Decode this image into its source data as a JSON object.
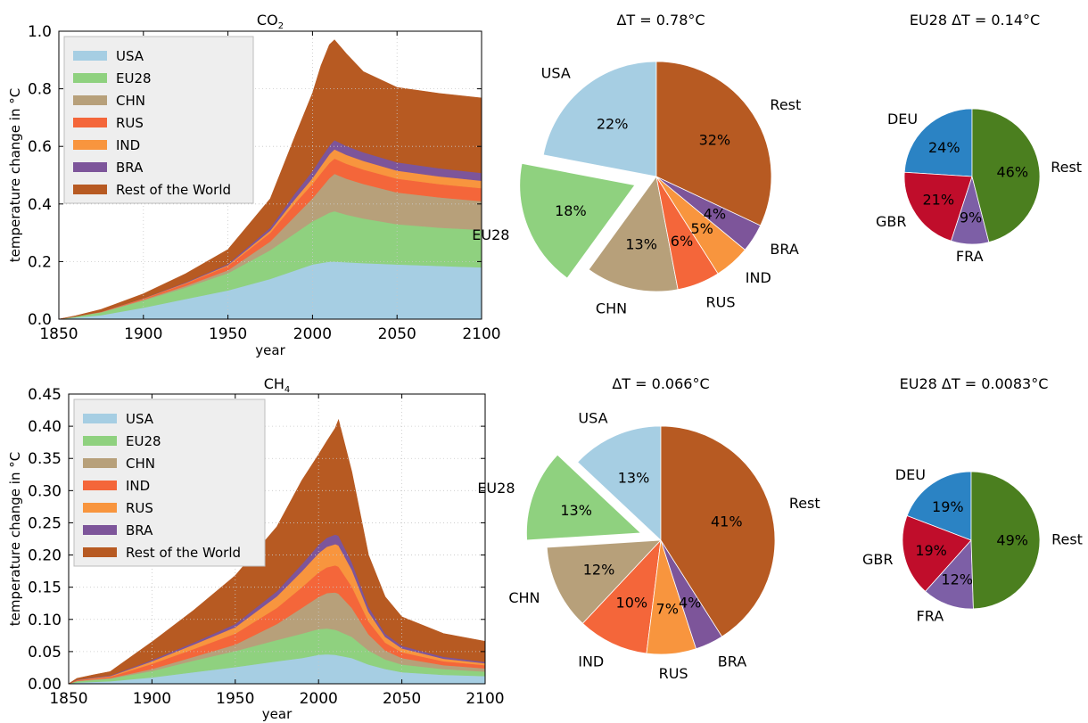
{
  "chart_data": [
    {
      "id": "co2_area",
      "type": "area",
      "title_main": "CO",
      "title_sub": "2",
      "xlabel": "year",
      "ylabel": "temperature change in °C",
      "xlim": [
        1850,
        2100
      ],
      "ylim": [
        0,
        1.0
      ],
      "xticks": [
        "1850",
        "1900",
        "1950",
        "2000",
        "2050",
        "2100"
      ],
      "yticks": [
        "0.0",
        "0.2",
        "0.4",
        "0.6",
        "0.8",
        "1.0"
      ],
      "grid": true,
      "legend_position": "top-left",
      "x": [
        1850,
        1860,
        1875,
        1900,
        1925,
        1950,
        1975,
        1990,
        2000,
        2005,
        2010,
        2013,
        2020,
        2030,
        2050,
        2075,
        2100
      ],
      "series": [
        {
          "name": "USA",
          "color": "#a6cee3",
          "values": [
            0,
            0.006,
            0.014,
            0.04,
            0.07,
            0.1,
            0.14,
            0.17,
            0.19,
            0.195,
            0.2,
            0.2,
            0.198,
            0.195,
            0.19,
            0.185,
            0.18
          ]
        },
        {
          "name": "EU28",
          "color": "#8fd17f",
          "values": [
            0,
            0.004,
            0.01,
            0.025,
            0.04,
            0.06,
            0.1,
            0.13,
            0.15,
            0.16,
            0.17,
            0.175,
            0.165,
            0.155,
            0.14,
            0.133,
            0.13
          ]
        },
        {
          "name": "CHN",
          "color": "#b7a07a",
          "values": [
            0,
            0,
            0.001,
            0.003,
            0.006,
            0.01,
            0.03,
            0.06,
            0.08,
            0.1,
            0.12,
            0.13,
            0.125,
            0.12,
            0.11,
            0.105,
            0.1
          ]
        },
        {
          "name": "RUS",
          "color": "#f4663a",
          "values": [
            0,
            0,
            0.001,
            0.003,
            0.008,
            0.015,
            0.03,
            0.045,
            0.05,
            0.052,
            0.053,
            0.053,
            0.052,
            0.05,
            0.048,
            0.046,
            0.045
          ]
        },
        {
          "name": "IND",
          "color": "#f8953e",
          "values": [
            0,
            0,
            0,
            0.001,
            0.002,
            0.003,
            0.008,
            0.015,
            0.02,
            0.025,
            0.03,
            0.032,
            0.031,
            0.03,
            0.028,
            0.027,
            0.026
          ]
        },
        {
          "name": "BRA",
          "color": "#7d559a",
          "values": [
            0,
            0,
            0,
            0.001,
            0.002,
            0.004,
            0.01,
            0.02,
            0.025,
            0.028,
            0.03,
            0.032,
            0.031,
            0.03,
            0.029,
            0.028,
            0.027
          ]
        },
        {
          "name": "Rest of the World",
          "color": "#b75a22",
          "values": [
            0,
            0.002,
            0.008,
            0.015,
            0.03,
            0.05,
            0.1,
            0.2,
            0.27,
            0.32,
            0.35,
            0.348,
            0.32,
            0.28,
            0.26,
            0.26,
            0.26
          ]
        }
      ]
    },
    {
      "id": "co2_pie_world",
      "type": "pie",
      "title": "ΔT = 0.78°C",
      "slices": [
        {
          "label": "USA",
          "value": 22,
          "pct": "22%",
          "color": "#a6cee3",
          "explode": false
        },
        {
          "label": "EU28",
          "value": 18,
          "pct": "18%",
          "color": "#8fd17f",
          "explode": true
        },
        {
          "label": "CHN",
          "value": 13,
          "pct": "13%",
          "color": "#b7a07a",
          "explode": false
        },
        {
          "label": "RUS",
          "value": 6,
          "pct": "6%",
          "color": "#f4663a",
          "explode": false
        },
        {
          "label": "IND",
          "value": 5,
          "pct": "5%",
          "color": "#f8953e",
          "explode": false
        },
        {
          "label": "BRA",
          "value": 4,
          "pct": "4%",
          "color": "#7d559a",
          "explode": false
        },
        {
          "label": "Rest",
          "value": 32,
          "pct": "32%",
          "color": "#b75a22",
          "explode": false
        }
      ]
    },
    {
      "id": "co2_pie_eu",
      "type": "pie",
      "title": "EU28 ΔT = 0.14°C",
      "slices": [
        {
          "label": "DEU",
          "value": 24,
          "pct": "24%",
          "color": "#2b83c4",
          "explode": false
        },
        {
          "label": "GBR",
          "value": 21,
          "pct": "21%",
          "color": "#c00d2b",
          "explode": false
        },
        {
          "label": "FRA",
          "value": 9,
          "pct": "9%",
          "color": "#7d5fa6",
          "explode": false
        },
        {
          "label": "Rest",
          "value": 46,
          "pct": "46%",
          "color": "#4b7f1f",
          "explode": false
        }
      ]
    },
    {
      "id": "ch4_area",
      "type": "area",
      "title_main": "CH",
      "title_sub": "4",
      "xlabel": "year",
      "ylabel": "temperature change in °C",
      "xlim": [
        1850,
        2100
      ],
      "ylim": [
        0,
        0.45
      ],
      "xticks": [
        "1850",
        "1900",
        "1950",
        "2000",
        "2050",
        "2100"
      ],
      "yticks": [
        "0.00",
        "0.05",
        "0.10",
        "0.15",
        "0.20",
        "0.25",
        "0.30",
        "0.35",
        "0.40",
        "0.45"
      ],
      "grid": true,
      "legend_position": "top-left",
      "x": [
        1850,
        1855,
        1865,
        1875,
        1900,
        1925,
        1950,
        1975,
        1990,
        2000,
        2005,
        2010,
        2012,
        2020,
        2030,
        2040,
        2050,
        2075,
        2100
      ],
      "series": [
        {
          "name": "USA",
          "color": "#a6cee3",
          "values": [
            0,
            0.002,
            0.003,
            0.004,
            0.01,
            0.018,
            0.026,
            0.035,
            0.04,
            0.045,
            0.046,
            0.045,
            0.044,
            0.04,
            0.03,
            0.023,
            0.018,
            0.014,
            0.012
          ]
        },
        {
          "name": "EU28",
          "color": "#8fd17f",
          "values": [
            0,
            0.002,
            0.003,
            0.004,
            0.01,
            0.018,
            0.025,
            0.033,
            0.038,
            0.04,
            0.04,
            0.039,
            0.038,
            0.033,
            0.022,
            0.015,
            0.012,
            0.009,
            0.007
          ]
        },
        {
          "name": "CHN",
          "color": "#b7a07a",
          "values": [
            0,
            0.0005,
            0.001,
            0.001,
            0.003,
            0.006,
            0.01,
            0.025,
            0.04,
            0.05,
            0.055,
            0.058,
            0.058,
            0.045,
            0.025,
            0.014,
            0.01,
            0.006,
            0.005
          ]
        },
        {
          "name": "IND",
          "color": "#f4663a",
          "values": [
            0,
            0.001,
            0.001,
            0.002,
            0.008,
            0.012,
            0.017,
            0.025,
            0.032,
            0.038,
            0.04,
            0.042,
            0.042,
            0.033,
            0.02,
            0.012,
            0.009,
            0.006,
            0.005
          ]
        },
        {
          "name": "RUS",
          "color": "#f8953e",
          "values": [
            0,
            0.0005,
            0.001,
            0.001,
            0.004,
            0.007,
            0.01,
            0.018,
            0.025,
            0.03,
            0.032,
            0.033,
            0.033,
            0.026,
            0.015,
            0.009,
            0.006,
            0.004,
            0.003
          ]
        },
        {
          "name": "BRA",
          "color": "#7d559a",
          "values": [
            0,
            0.0005,
            0.001,
            0.001,
            0.002,
            0.003,
            0.005,
            0.008,
            0.011,
            0.013,
            0.014,
            0.015,
            0.015,
            0.012,
            0.008,
            0.005,
            0.004,
            0.003,
            0.002
          ]
        },
        {
          "name": "Rest of the World",
          "color": "#b75a22",
          "values": [
            0,
            0.002,
            0.004,
            0.006,
            0.028,
            0.05,
            0.075,
            0.1,
            0.13,
            0.14,
            0.15,
            0.165,
            0.18,
            0.14,
            0.08,
            0.057,
            0.045,
            0.036,
            0.032
          ]
        }
      ]
    },
    {
      "id": "ch4_pie_world",
      "type": "pie",
      "title": "ΔT = 0.066°C",
      "slices": [
        {
          "label": "USA",
          "value": 13,
          "pct": "13%",
          "color": "#a6cee3",
          "explode": false
        },
        {
          "label": "EU28",
          "value": 13,
          "pct": "13%",
          "color": "#8fd17f",
          "explode": true
        },
        {
          "label": "CHN",
          "value": 12,
          "pct": "12%",
          "color": "#b7a07a",
          "explode": false
        },
        {
          "label": "IND",
          "value": 10,
          "pct": "10%",
          "color": "#f4663a",
          "explode": false
        },
        {
          "label": "RUS",
          "value": 7,
          "pct": "7%",
          "color": "#f8953e",
          "explode": false
        },
        {
          "label": "BRA",
          "value": 4,
          "pct": "4%",
          "color": "#7d559a",
          "explode": false
        },
        {
          "label": "Rest",
          "value": 41,
          "pct": "41%",
          "color": "#b75a22",
          "explode": false
        }
      ]
    },
    {
      "id": "ch4_pie_eu",
      "type": "pie",
      "title": "EU28 ΔT = 0.0083°C",
      "slices": [
        {
          "label": "DEU",
          "value": 19,
          "pct": "19%",
          "color": "#2b83c4",
          "explode": false
        },
        {
          "label": "GBR",
          "value": 19,
          "pct": "19%",
          "color": "#c00d2b",
          "explode": false
        },
        {
          "label": "FRA",
          "value": 12,
          "pct": "12%",
          "color": "#7d5fa6",
          "explode": false
        },
        {
          "label": "Rest",
          "value": 49,
          "pct": "49%",
          "color": "#4b7f1f",
          "explode": false
        }
      ]
    }
  ]
}
